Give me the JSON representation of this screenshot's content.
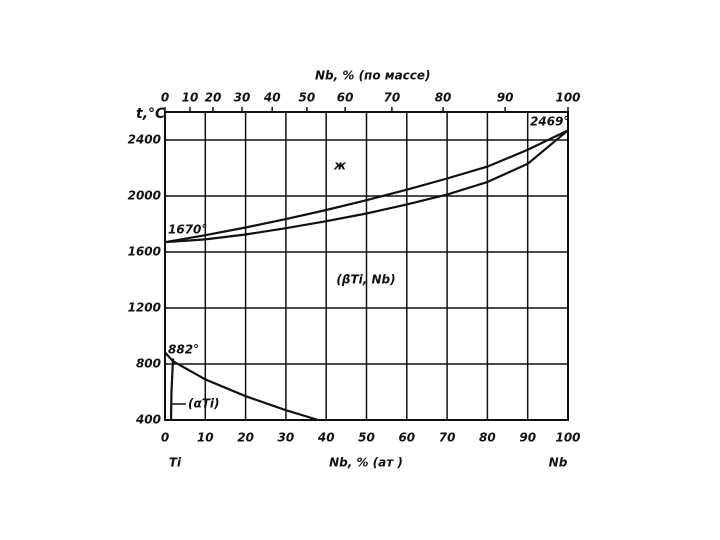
{
  "chart_data": {
    "type": "line",
    "x_axis_label": "Nb, % (ат )",
    "x2_axis_label": "Nb, % (по массе)",
    "y_axis_label": "t,°C",
    "xlim": [
      0,
      100
    ],
    "xticks": [
      0,
      10,
      20,
      30,
      40,
      50,
      60,
      70,
      80,
      90,
      100
    ],
    "x2ticks": [
      {
        "value": 0,
        "label": "0"
      },
      {
        "value": 6.2,
        "label": "10"
      },
      {
        "value": 11.9,
        "label": "20"
      },
      {
        "value": 19.1,
        "label": "30"
      },
      {
        "value": 26.6,
        "label": "40"
      },
      {
        "value": 35.2,
        "label": "50"
      },
      {
        "value": 44.7,
        "label": "60"
      },
      {
        "value": 56.3,
        "label": "70"
      },
      {
        "value": 69.0,
        "label": "80"
      },
      {
        "value": 84.4,
        "label": "90"
      },
      {
        "value": 100,
        "label": "100"
      }
    ],
    "ylim": [
      400,
      2600
    ],
    "yticks": [
      400,
      800,
      1200,
      1600,
      2000,
      2400
    ],
    "grid": true,
    "series": [
      {
        "color": "#111111",
        "x": [
          0,
          10,
          20,
          30,
          40,
          50,
          60,
          70,
          80,
          90,
          100
        ],
        "values": [
          1670,
          1720,
          1775,
          1835,
          1900,
          1970,
          2045,
          2125,
          2210,
          2330,
          2469
        ]
      },
      {
        "color": "#111111",
        "x": [
          0,
          10,
          20,
          30,
          40,
          50,
          60,
          70,
          80,
          90,
          100
        ],
        "values": [
          1670,
          1690,
          1725,
          1770,
          1820,
          1875,
          1940,
          2010,
          2100,
          2230,
          2469
        ]
      },
      {
        "color": "#111111",
        "x": [
          0,
          2,
          10,
          20,
          30,
          38
        ],
        "values": [
          882,
          820,
          690,
          570,
          470,
          400
        ]
      },
      {
        "color": "#111111",
        "x": [
          2,
          1.6,
          1.5
        ],
        "values": [
          840,
          600,
          400
        ]
      }
    ],
    "annotations": [
      "ж",
      "(βTi, Nb)",
      "(αTi)",
      "1670°",
      "882°",
      "2469°",
      "Ti",
      "Nb"
    ]
  }
}
